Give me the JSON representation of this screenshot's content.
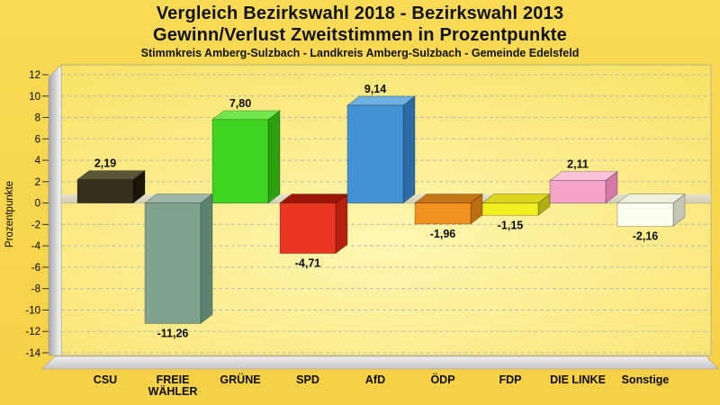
{
  "header": {
    "title_line1": "Vergleich Bezirkswahl 2018 - Bezirkswahl 2013",
    "title_line2": "Gewinn/Verlust Zweitstimmen in Prozentpunkte",
    "subtitle": "Stimmkreis Amberg-Sulzbach - Landkreis Amberg-Sulzbach - Gemeinde Edelsfeld",
    "title_color": "#111111"
  },
  "colors": {
    "page_background": "#f8d64e",
    "plot_center": "#fef7b2",
    "plot_mid": "#fbeA85",
    "plot_edge": "#f8e05f",
    "plot_border": "#b3b38e",
    "grid": "#b9b9b9",
    "zero_band_top": "#e7e3cb",
    "zero_band_bottom": "#d2ceb3",
    "wall_dark": "#a5a5a5",
    "wall_light": "#e9e9e9",
    "floor_light": "#efefef",
    "floor_dark": "#c6c6c6",
    "tick_text": "#000000",
    "label_text": "#0a0a0a"
  },
  "chart_data": {
    "type": "bar",
    "style": "3d-column",
    "title": "Vergleich Bezirkswahl 2018 - Bezirkswahl 2013",
    "subtitle": "Gewinn/Verlust Zweitstimmen in Prozentpunkte",
    "caption": "Stimmkreis Amberg-Sulzbach - Landkreis Amberg-Sulzbach - Gemeinde Edelsfeld",
    "xlabel": "",
    "ylabel": "Prozentpunkte",
    "ylim": [
      -14,
      12
    ],
    "ytick_step": 2,
    "grid": "dashed",
    "legend": "none",
    "categories": [
      "CSU",
      "FREIE WÄHLER",
      "GRÜNE",
      "SPD",
      "AfD",
      "ÖDP",
      "FDP",
      "DIE LINKE",
      "Sonstige"
    ],
    "category_label_lines": [
      [
        "CSU"
      ],
      [
        "FREIE",
        "WÄHLER"
      ],
      [
        "GRÜNE"
      ],
      [
        "SPD"
      ],
      [
        "AfD"
      ],
      [
        "ÖDP"
      ],
      [
        "FDP"
      ],
      [
        "DIE LINKE"
      ],
      [
        "Sonstige"
      ]
    ],
    "values": [
      2.19,
      -11.26,
      7.8,
      -4.71,
      9.14,
      -1.96,
      -1.15,
      2.11,
      -2.16
    ],
    "value_labels": [
      "2,19",
      "-11,26",
      "7,80",
      "-4,71",
      "9,14",
      "-1,96",
      "-1,15",
      "2,11",
      "-2,16"
    ],
    "bars": [
      {
        "party": "CSU",
        "value": 2.19,
        "label": "2,19",
        "front": "#343019",
        "top": "#5b5538",
        "side": "#191608"
      },
      {
        "party": "FREIE WÄHLER",
        "value": -11.26,
        "label": "-11,26",
        "front": "#80a28e",
        "top": "#9db6a7",
        "side": "#5d8471"
      },
      {
        "party": "GRÜNE",
        "value": 7.8,
        "label": "7,80",
        "front": "#3fd51f",
        "top": "#72e64d",
        "side": "#2ca20f"
      },
      {
        "party": "SPD",
        "value": -4.71,
        "label": "-4,71",
        "front": "#ea3520",
        "top": "#9c1708",
        "side": "#b5200f"
      },
      {
        "party": "AfD",
        "value": 9.14,
        "label": "9,14",
        "front": "#4392d6",
        "top": "#6fb0e2",
        "side": "#2b6ca5"
      },
      {
        "party": "ÖDP",
        "value": -1.96,
        "label": "-1,96",
        "front": "#f19120",
        "top": "#c77617",
        "side": "#bd6f10"
      },
      {
        "party": "FDP",
        "value": -1.15,
        "label": "-1,15",
        "front": "#f1ef1e",
        "top": "#d9d61b",
        "side": "#b1ae10"
      },
      {
        "party": "DIE LINKE",
        "value": 2.11,
        "label": "2,11",
        "front": "#f5a3c8",
        "top": "#f9c2da",
        "side": "#d678a6"
      },
      {
        "party": "Sonstige",
        "value": -2.16,
        "label": "-2,16",
        "front": "#fdfdf1",
        "top": "#f0f0e0",
        "side": "#c5c5b6"
      }
    ]
  }
}
